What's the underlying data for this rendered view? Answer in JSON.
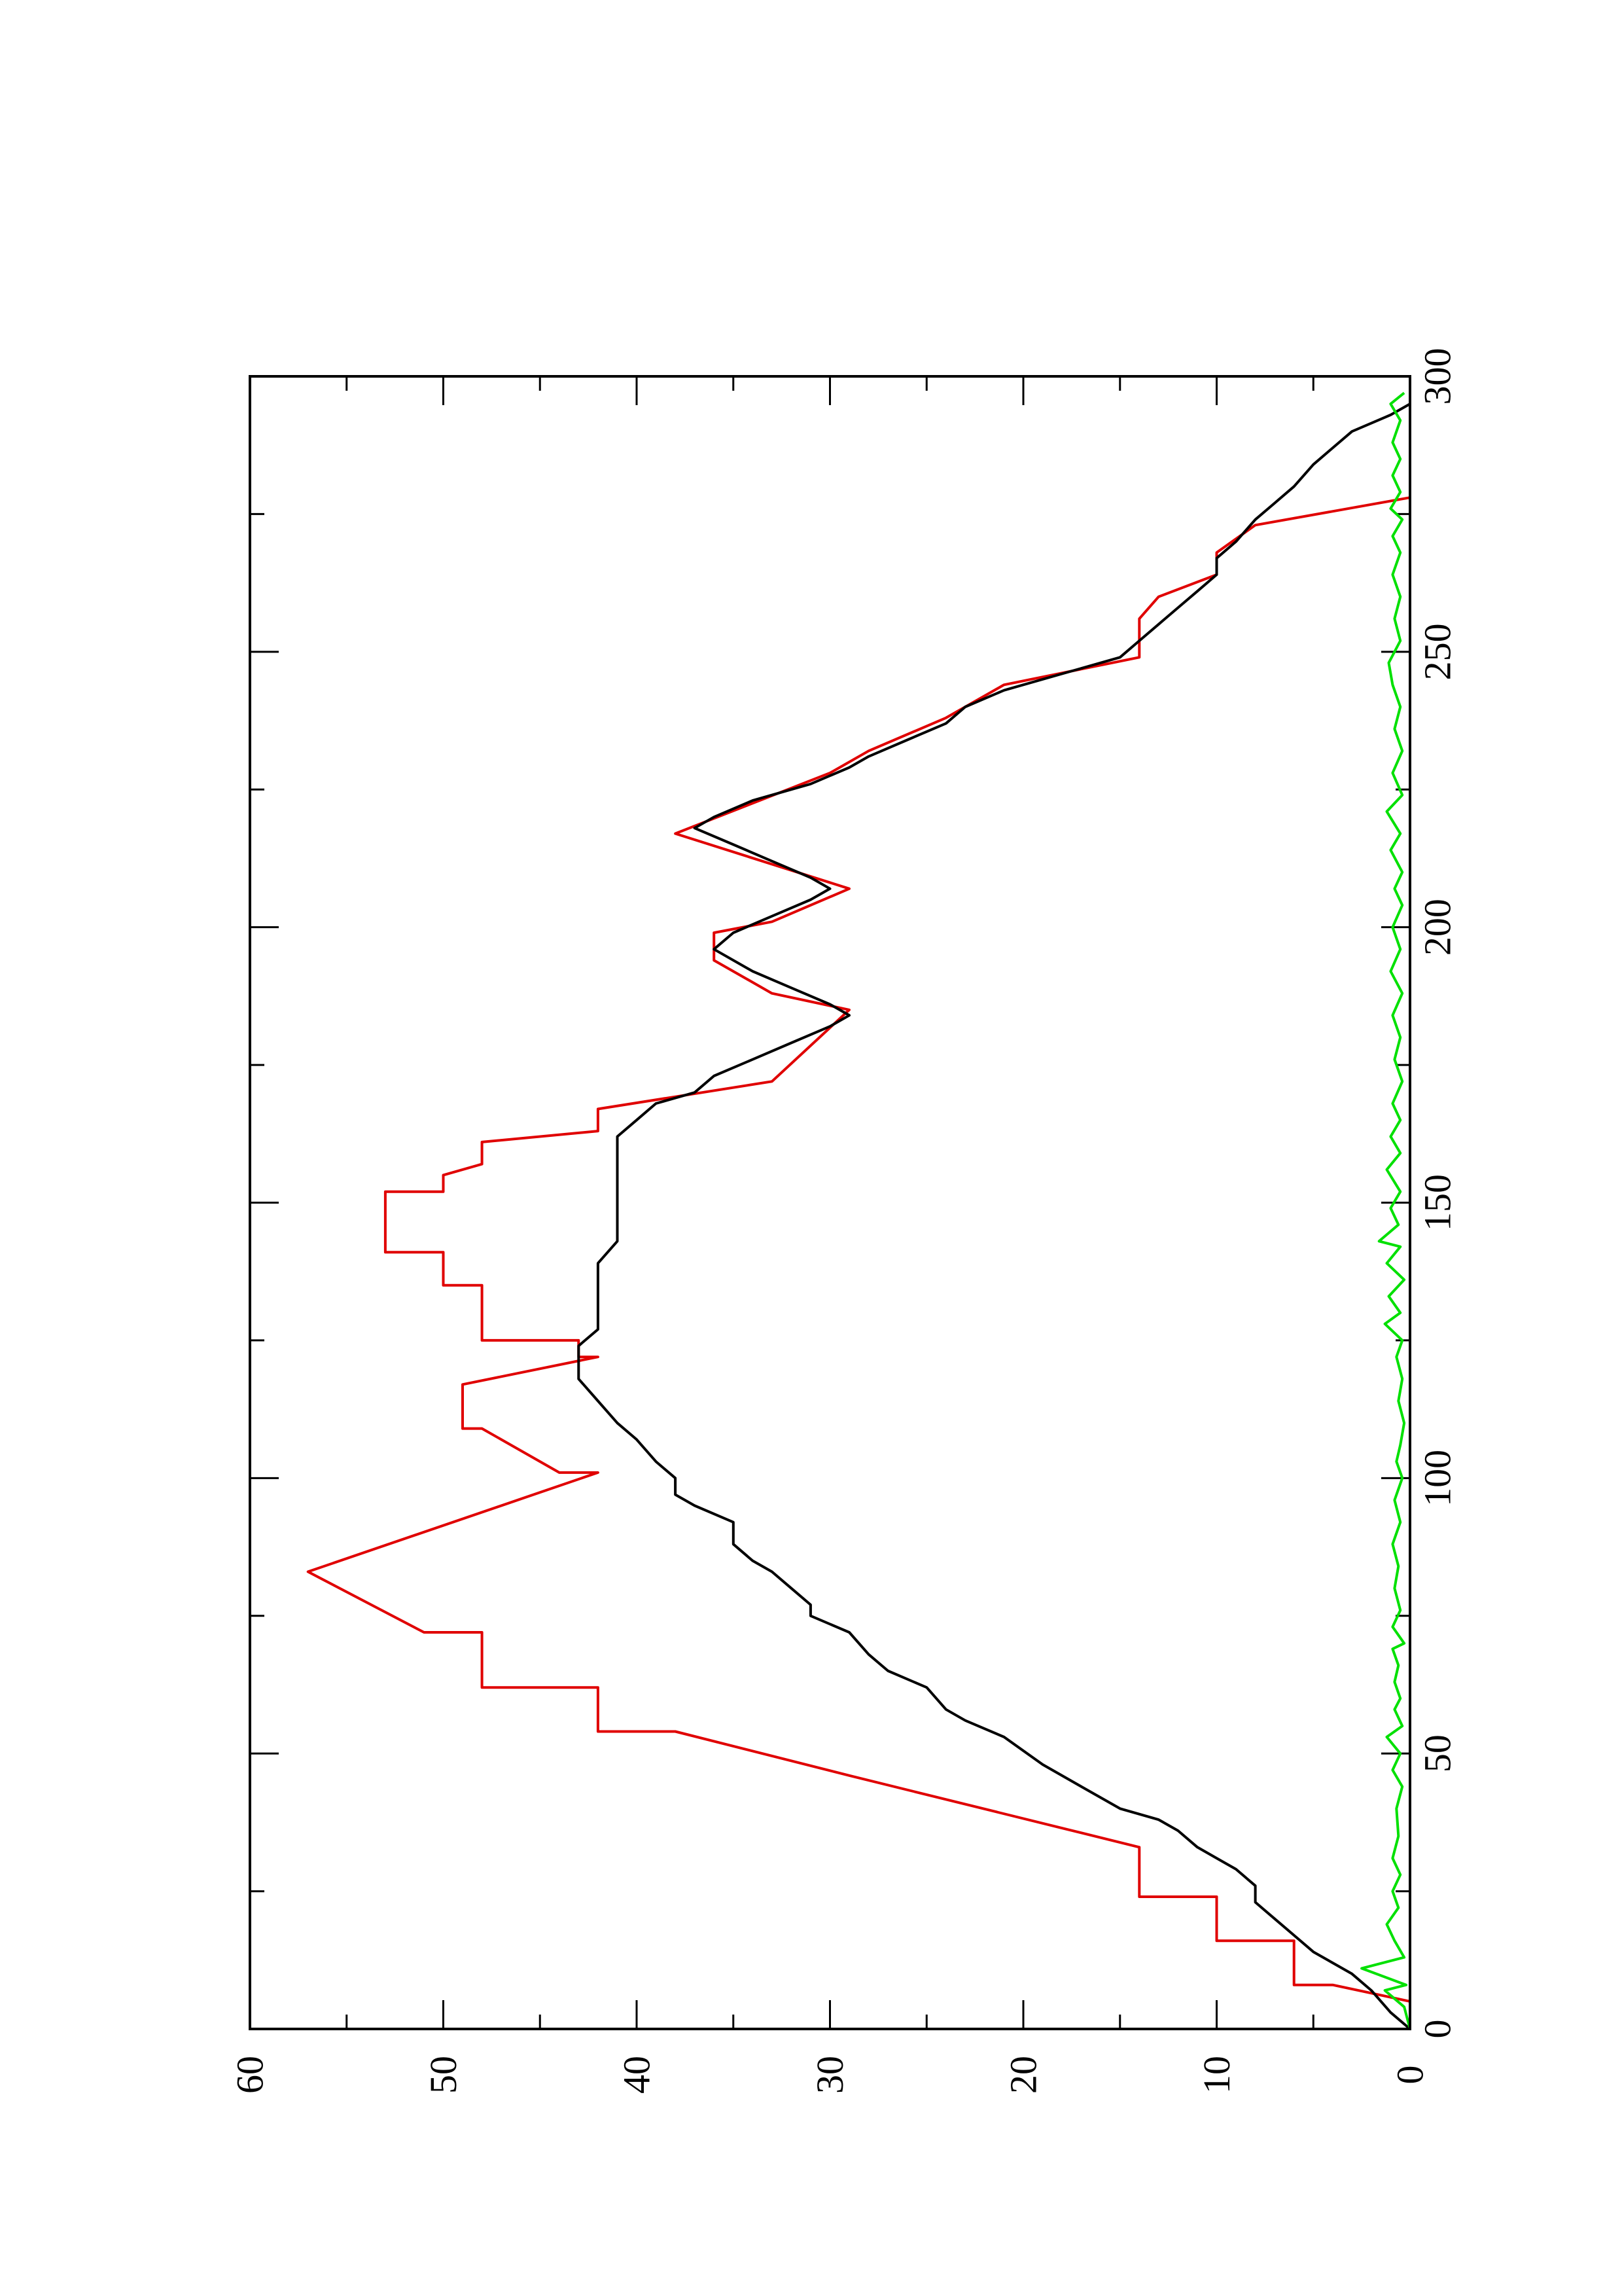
{
  "chart_data": {
    "type": "line",
    "orientation": "rotated-90-ccw",
    "title": "",
    "xlabel": "",
    "ylabel": "",
    "xlim": [
      0,
      300
    ],
    "ylim": [
      0,
      60
    ],
    "grid": false,
    "legend": "none",
    "x_ticks": [
      "0",
      "50",
      "100",
      "150",
      "200",
      "250",
      "300"
    ],
    "y_ticks": [
      "0",
      "10",
      "20",
      "30",
      "40",
      "50",
      "60"
    ],
    "series": [
      {
        "color": "#e00000",
        "points": [
          [
            5,
            0
          ],
          [
            8,
            4
          ],
          [
            8,
            6
          ],
          [
            16,
            6
          ],
          [
            16,
            10
          ],
          [
            24,
            10
          ],
          [
            24,
            14
          ],
          [
            33,
            14
          ],
          [
            46,
            29
          ],
          [
            54,
            38
          ],
          [
            54,
            42
          ],
          [
            62,
            42
          ],
          [
            62,
            48
          ],
          [
            72,
            48
          ],
          [
            72,
            51
          ],
          [
            83,
            57
          ],
          [
            101,
            42
          ],
          [
            101,
            44
          ],
          [
            109,
            48
          ],
          [
            109,
            49
          ],
          [
            117,
            49
          ],
          [
            122,
            42
          ],
          [
            122,
            43
          ],
          [
            125,
            43
          ],
          [
            125,
            48
          ],
          [
            135,
            48
          ],
          [
            135,
            50
          ],
          [
            141,
            50
          ],
          [
            141,
            53
          ],
          [
            152,
            53
          ],
          [
            152,
            50
          ],
          [
            155,
            50
          ],
          [
            157,
            48
          ],
          [
            161,
            48
          ],
          [
            163,
            42
          ],
          [
            167,
            42
          ],
          [
            172,
            33
          ],
          [
            185,
            29
          ],
          [
            188,
            33
          ],
          [
            194,
            36
          ],
          [
            199,
            36
          ],
          [
            201,
            33
          ],
          [
            207,
            29
          ],
          [
            217,
            38
          ],
          [
            228,
            30
          ],
          [
            232,
            28
          ],
          [
            238,
            24
          ],
          [
            244,
            21
          ],
          [
            249,
            14
          ],
          [
            256,
            14
          ],
          [
            260,
            13
          ],
          [
            264,
            10
          ],
          [
            268,
            10
          ],
          [
            273,
            8
          ],
          [
            278,
            0
          ]
        ]
      },
      {
        "color": "#000000",
        "points": [
          [
            0,
            0
          ],
          [
            3,
            1
          ],
          [
            7,
            2
          ],
          [
            10,
            3
          ],
          [
            12,
            4
          ],
          [
            14,
            5
          ],
          [
            17,
            6
          ],
          [
            20,
            7
          ],
          [
            23,
            8
          ],
          [
            26,
            8
          ],
          [
            29,
            9
          ],
          [
            31,
            10
          ],
          [
            33,
            11
          ],
          [
            36,
            12
          ],
          [
            38,
            13
          ],
          [
            40,
            15
          ],
          [
            44,
            17
          ],
          [
            48,
            19
          ],
          [
            53,
            21
          ],
          [
            56,
            23
          ],
          [
            58,
            24
          ],
          [
            62,
            25
          ],
          [
            65,
            27
          ],
          [
            68,
            28
          ],
          [
            72,
            29
          ],
          [
            75,
            31
          ],
          [
            77,
            31
          ],
          [
            80,
            32
          ],
          [
            83,
            33
          ],
          [
            85,
            34
          ],
          [
            88,
            35
          ],
          [
            92,
            35
          ],
          [
            95,
            37
          ],
          [
            97,
            38
          ],
          [
            100,
            38
          ],
          [
            103,
            39
          ],
          [
            107,
            40
          ],
          [
            110,
            41
          ],
          [
            114,
            42
          ],
          [
            118,
            43
          ],
          [
            120,
            43
          ],
          [
            124,
            43
          ],
          [
            127,
            42
          ],
          [
            130,
            42
          ],
          [
            133,
            42
          ],
          [
            136,
            42
          ],
          [
            139,
            42
          ],
          [
            143,
            41
          ],
          [
            147,
            41
          ],
          [
            151,
            41
          ],
          [
            154,
            41
          ],
          [
            158,
            41
          ],
          [
            162,
            41
          ],
          [
            165,
            40
          ],
          [
            168,
            39
          ],
          [
            170,
            37
          ],
          [
            173,
            36
          ],
          [
            176,
            34
          ],
          [
            179,
            32
          ],
          [
            182,
            30
          ],
          [
            184,
            29
          ],
          [
            186,
            30
          ],
          [
            189,
            32
          ],
          [
            192,
            34
          ],
          [
            196,
            36
          ],
          [
            199,
            35
          ],
          [
            202,
            33
          ],
          [
            205,
            31
          ],
          [
            207,
            30
          ],
          [
            209,
            31
          ],
          [
            212,
            33
          ],
          [
            215,
            35
          ],
          [
            218,
            37
          ],
          [
            220,
            36
          ],
          [
            223,
            34
          ],
          [
            226,
            31
          ],
          [
            229,
            29
          ],
          [
            231,
            28
          ],
          [
            234,
            26
          ],
          [
            237,
            24
          ],
          [
            240,
            23
          ],
          [
            243,
            21
          ],
          [
            246,
            18
          ],
          [
            249,
            15
          ],
          [
            252,
            14
          ],
          [
            255,
            13
          ],
          [
            258,
            12
          ],
          [
            261,
            11
          ],
          [
            264,
            10
          ],
          [
            267,
            10
          ],
          [
            270,
            9
          ],
          [
            274,
            8
          ],
          [
            277,
            7
          ],
          [
            280,
            6
          ],
          [
            284,
            5
          ],
          [
            287,
            4
          ],
          [
            290,
            3
          ],
          [
            293,
            1
          ],
          [
            295,
            0
          ]
        ]
      },
      {
        "color": "#00e000",
        "points": [
          [
            0,
            0
          ],
          [
            4,
            0.3
          ],
          [
            7,
            1.3
          ],
          [
            8,
            0.2
          ],
          [
            11,
            2.5
          ],
          [
            13,
            0.3
          ],
          [
            16,
            0.8
          ],
          [
            19,
            1.2
          ],
          [
            22,
            0.6
          ],
          [
            25,
            0.9
          ],
          [
            28,
            0.5
          ],
          [
            31,
            0.9
          ],
          [
            35,
            0.6
          ],
          [
            40,
            0.7
          ],
          [
            44,
            0.4
          ],
          [
            47,
            0.9
          ],
          [
            50,
            0.5
          ],
          [
            53,
            1.2
          ],
          [
            55,
            0.4
          ],
          [
            58,
            0.8
          ],
          [
            60,
            0.5
          ],
          [
            63,
            0.8
          ],
          [
            66,
            0.6
          ],
          [
            69,
            0.9
          ],
          [
            70,
            0.3
          ],
          [
            73,
            0.9
          ],
          [
            76,
            0.5
          ],
          [
            80,
            0.8
          ],
          [
            84,
            0.6
          ],
          [
            88,
            0.9
          ],
          [
            92,
            0.5
          ],
          [
            96,
            0.8
          ],
          [
            100,
            0.4
          ],
          [
            103,
            0.7
          ],
          [
            106,
            0.5
          ],
          [
            110,
            0.3
          ],
          [
            114,
            0.6
          ],
          [
            118,
            0.4
          ],
          [
            122,
            0.7
          ],
          [
            125,
            0.4
          ],
          [
            128,
            1.3
          ],
          [
            130,
            0.5
          ],
          [
            133,
            1.1
          ],
          [
            136,
            0.3
          ],
          [
            139,
            1.2
          ],
          [
            142,
            0.5
          ],
          [
            143,
            1.6
          ],
          [
            146,
            0.6
          ],
          [
            149,
            1.0
          ],
          [
            152,
            0.5
          ],
          [
            156,
            1.2
          ],
          [
            159,
            0.5
          ],
          [
            162,
            1.0
          ],
          [
            165,
            0.5
          ],
          [
            168,
            0.9
          ],
          [
            172,
            0.4
          ],
          [
            176,
            0.8
          ],
          [
            180,
            0.5
          ],
          [
            184,
            0.9
          ],
          [
            188,
            0.4
          ],
          [
            192,
            1.0
          ],
          [
            196,
            0.5
          ],
          [
            200,
            0.9
          ],
          [
            204,
            0.4
          ],
          [
            207,
            0.8
          ],
          [
            210,
            0.4
          ],
          [
            214,
            1.0
          ],
          [
            217,
            0.5
          ],
          [
            221,
            1.2
          ],
          [
            224,
            0.4
          ],
          [
            228,
            0.9
          ],
          [
            232,
            0.4
          ],
          [
            236,
            0.8
          ],
          [
            240,
            0.5
          ],
          [
            244,
            0.9
          ],
          [
            248,
            1.1
          ],
          [
            252,
            0.5
          ],
          [
            256,
            0.8
          ],
          [
            260,
            0.5
          ],
          [
            264,
            0.9
          ],
          [
            268,
            0.5
          ],
          [
            271,
            0.9
          ],
          [
            274,
            0.4
          ],
          [
            276,
            1.0
          ],
          [
            279,
            0.5
          ],
          [
            282,
            0.9
          ],
          [
            285,
            0.5
          ],
          [
            288,
            0.9
          ],
          [
            292,
            0.5
          ],
          [
            295,
            1.0
          ],
          [
            297,
            0.3
          ]
        ]
      }
    ]
  }
}
